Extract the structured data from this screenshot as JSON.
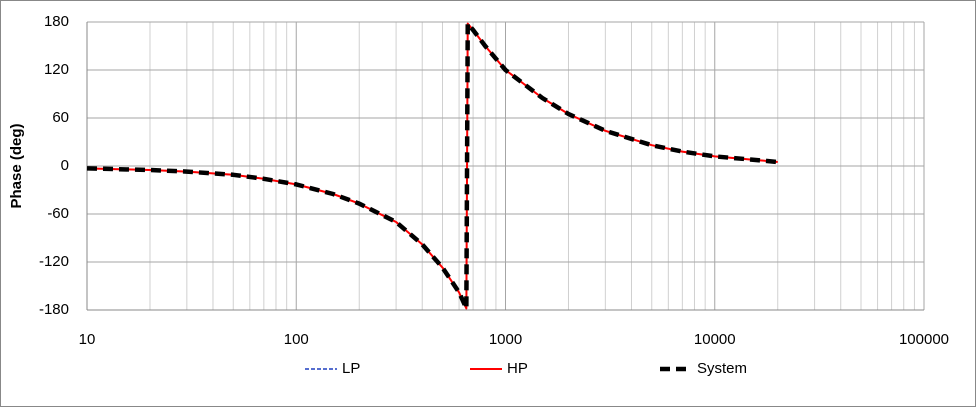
{
  "chart_data": {
    "type": "line",
    "y_label": "Phase (deg)",
    "x": [
      10,
      20,
      30,
      50,
      70,
      100,
      150,
      200,
      300,
      400,
      500,
      600,
      650,
      660,
      700,
      800,
      1000,
      1500,
      2000,
      3000,
      5000,
      7000,
      10000,
      15000,
      20000
    ],
    "series": [
      {
        "name": "LP",
        "color": "#1f3fbf",
        "values": [
          -3,
          -5,
          -7,
          -11,
          -16,
          -23,
          -35,
          -47,
          -70,
          -98,
          -127,
          -158,
          -178,
          178,
          170,
          150,
          120,
          85,
          65,
          44,
          26,
          18,
          12,
          8,
          5
        ]
      },
      {
        "name": "HP",
        "color": "#ff0000",
        "values": [
          -3,
          -5,
          -7,
          -11,
          -16,
          -23,
          -35,
          -47,
          -70,
          -98,
          -127,
          -158,
          -178,
          178,
          170,
          150,
          120,
          85,
          65,
          44,
          26,
          18,
          12,
          8,
          5
        ]
      },
      {
        "name": "System",
        "color": "#000000",
        "values": [
          -3,
          -5,
          -7,
          -11,
          -16,
          -23,
          -35,
          -47,
          -70,
          -98,
          -127,
          -158,
          -178,
          178,
          170,
          150,
          120,
          85,
          65,
          44,
          26,
          18,
          12,
          8,
          5
        ]
      }
    ],
    "x_scale": "log",
    "xlim": [
      10,
      100000
    ],
    "xticks": [
      10,
      100,
      1000,
      10000,
      100000
    ],
    "ylim": [
      -180,
      180
    ],
    "yticks": [
      -180,
      -120,
      -60,
      0,
      60,
      120,
      180
    ],
    "grid": true,
    "minor_grid": true,
    "legend": "bottom"
  }
}
